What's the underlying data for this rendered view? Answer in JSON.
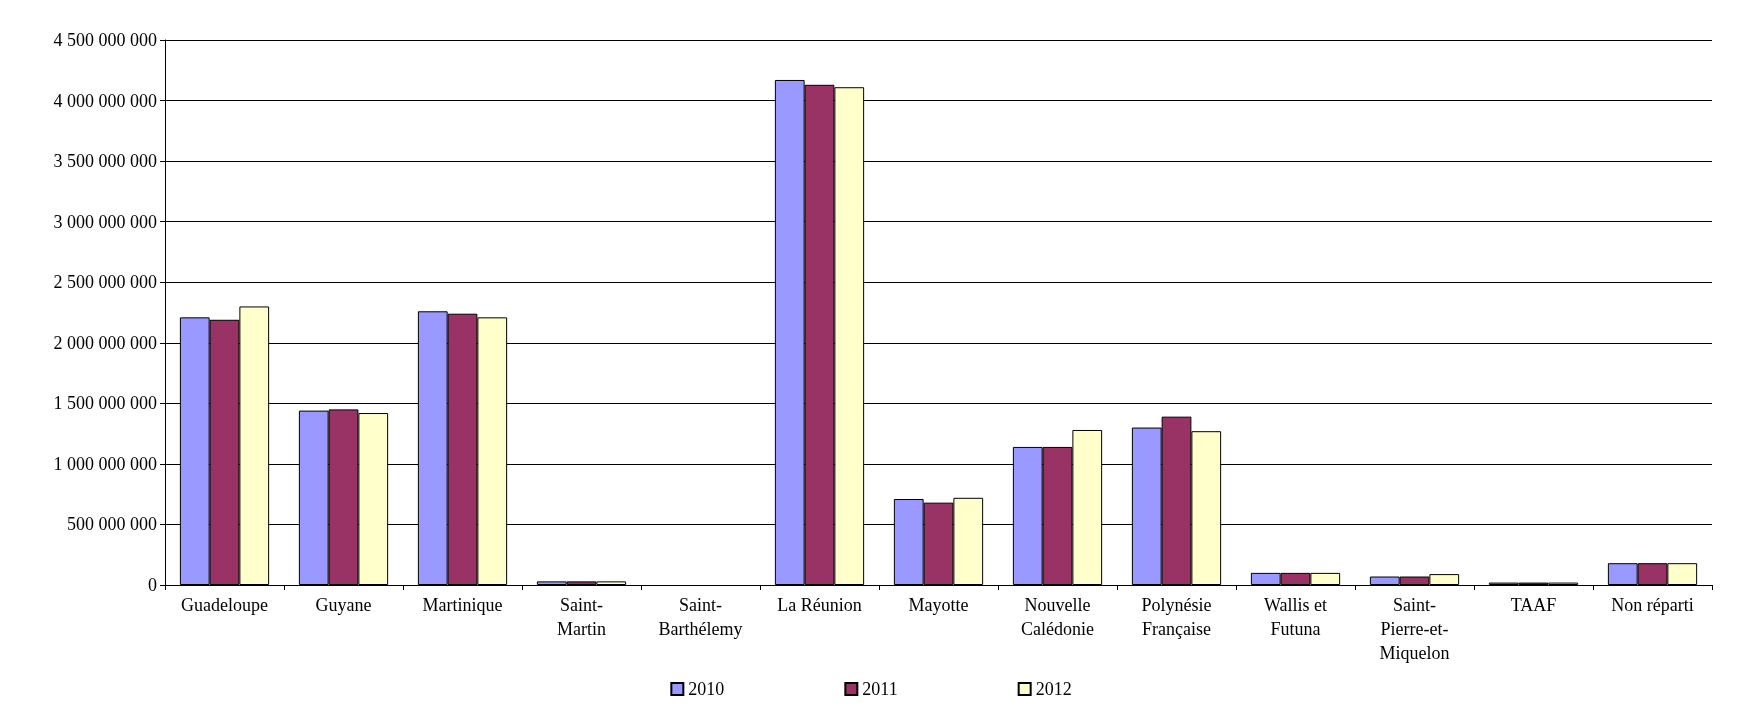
{
  "chart_data": {
    "type": "bar",
    "categories": [
      "Guadeloupe",
      "Guyane",
      "Martinique",
      "Saint-Martin",
      "Saint-Barthélemy",
      "La Réunion",
      "Mayotte",
      "Nouvelle Calédonie",
      "Polynésie Française",
      "Wallis et Futuna",
      "Saint-Pierre-et-Miquelon",
      "TAAF",
      "Non réparti"
    ],
    "series": [
      {
        "name": "2010",
        "color": "#9999ff",
        "values": [
          2210000000,
          1440000000,
          2260000000,
          30000000,
          0,
          4170000000,
          710000000,
          1140000000,
          1300000000,
          100000000,
          70000000,
          20000000,
          180000000
        ]
      },
      {
        "name": "2011",
        "color": "#993366",
        "values": [
          2190000000,
          1450000000,
          2240000000,
          30000000,
          0,
          4130000000,
          680000000,
          1140000000,
          1390000000,
          100000000,
          70000000,
          20000000,
          180000000
        ]
      },
      {
        "name": "2012",
        "color": "#ffffcc",
        "values": [
          2300000000,
          1420000000,
          2210000000,
          30000000,
          0,
          4110000000,
          720000000,
          1280000000,
          1270000000,
          100000000,
          90000000,
          20000000,
          180000000
        ]
      }
    ],
    "ylim": [
      0,
      4500000000
    ],
    "yticks": [
      0,
      {
        "value": 500000000,
        "label": "500 000 000"
      },
      {
        "value": 1000000000,
        "label": "1 000 000 000"
      },
      {
        "value": 1500000000,
        "label": "1 500 000 000"
      },
      {
        "value": 2000000000,
        "label": "2 000 000 000"
      },
      {
        "value": 2500000000,
        "label": "2 500 000 000"
      },
      {
        "value": 3000000000,
        "label": "3 000 000 000"
      },
      {
        "value": 3500000000,
        "label": "3 500 000 000"
      },
      {
        "value": 4000000000,
        "label": "4 000 000 000"
      },
      {
        "value": 4500000000,
        "label": "4 500 000 000"
      }
    ],
    "grid": "y",
    "legend": "bottom"
  }
}
